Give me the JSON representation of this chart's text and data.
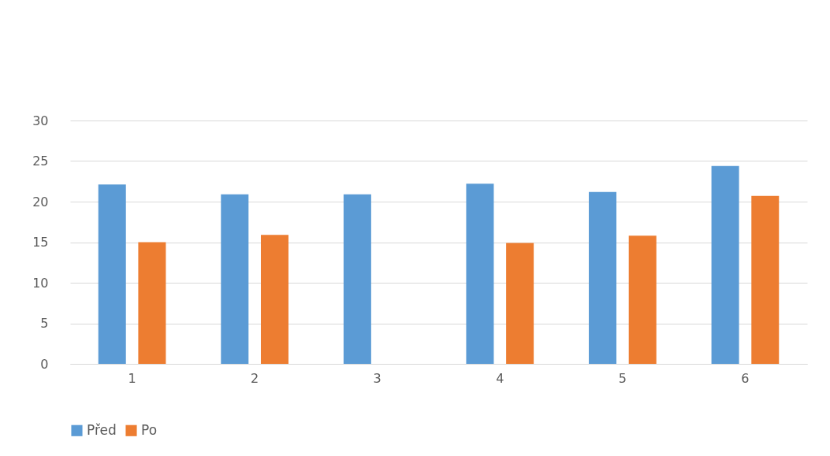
{
  "chart_data": {
    "type": "bar",
    "categories": [
      "1",
      "2",
      "3",
      "4",
      "5",
      "6"
    ],
    "series": [
      {
        "name": "Před",
        "color": "#5b9bd5",
        "values": [
          22.1,
          20.9,
          20.9,
          22.2,
          21.2,
          24.4
        ]
      },
      {
        "name": "Po",
        "color": "#ed7d31",
        "values": [
          15.0,
          15.9,
          null,
          14.9,
          15.8,
          20.7
        ]
      }
    ],
    "ylim": [
      0,
      30
    ],
    "yticks": [
      0,
      5,
      10,
      15,
      20,
      25,
      30
    ],
    "grid": "y",
    "legend": "bottom"
  }
}
